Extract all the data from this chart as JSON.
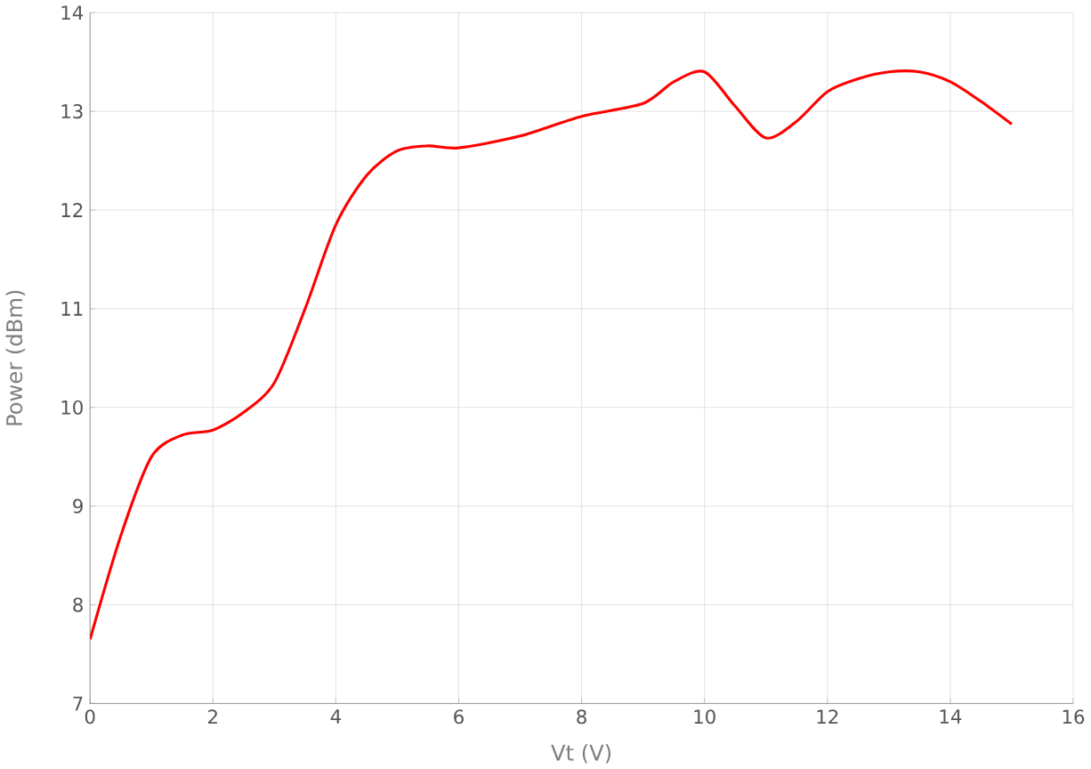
{
  "chart_data": {
    "type": "line",
    "xlabel": "Vt (V)",
    "ylabel": "Power (dBm)",
    "x": [
      0,
      0.5,
      1,
      1.5,
      2,
      2.5,
      3,
      3.5,
      4,
      4.5,
      5,
      5.5,
      6,
      7,
      8,
      9,
      9.5,
      10,
      10.5,
      11,
      11.5,
      12,
      12.5,
      13,
      13.5,
      14,
      14.5,
      15
    ],
    "series": [
      {
        "color": "#ff0000",
        "values": [
          7.65,
          8.7,
          9.5,
          9.72,
          9.77,
          9.95,
          10.25,
          11.0,
          11.85,
          12.35,
          12.6,
          12.65,
          12.63,
          12.75,
          12.95,
          13.08,
          13.3,
          13.4,
          13.05,
          12.73,
          12.9,
          13.2,
          13.33,
          13.4,
          13.4,
          13.3,
          13.1,
          12.87
        ]
      }
    ],
    "xlim": [
      0,
      16
    ],
    "ylim": [
      7,
      14
    ],
    "xticks": [
      0,
      2,
      4,
      6,
      8,
      10,
      12,
      14,
      16
    ],
    "yticks": [
      7,
      8,
      9,
      10,
      11,
      12,
      13,
      14
    ],
    "grid": true,
    "marker": "none",
    "line_style": "solid"
  }
}
